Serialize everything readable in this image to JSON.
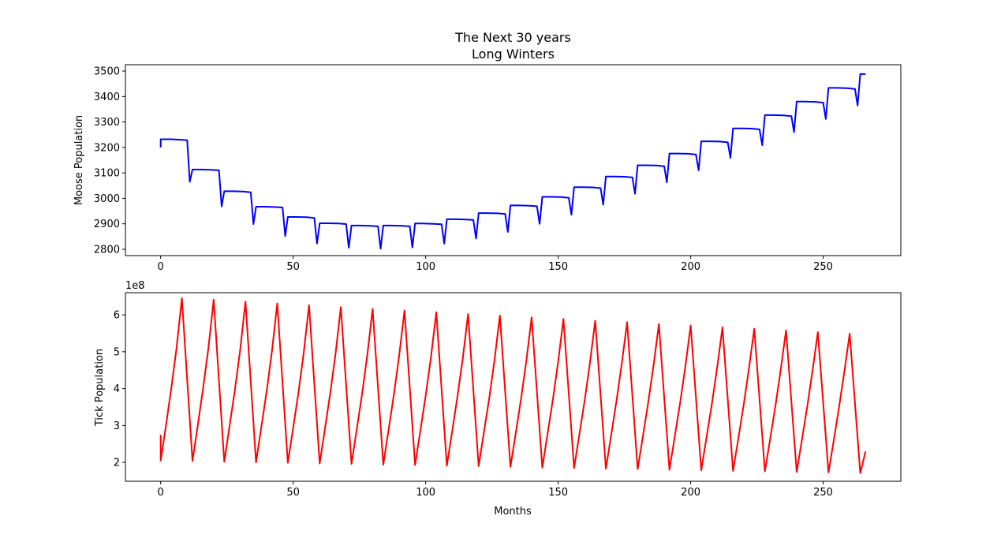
{
  "figure": {
    "title_line1": "The Next 30 years",
    "title_line2": "Long Winters"
  },
  "chart_data": [
    {
      "type": "line",
      "title": "The Next 30 years\nLong Winters",
      "xlabel": "",
      "ylabel": "Moose Population",
      "xlim": [
        -13.3,
        279.3
      ],
      "ylim": [
        2775,
        3525
      ],
      "xticks": [
        0,
        50,
        100,
        150,
        200,
        250
      ],
      "yticks": [
        2800,
        2900,
        3000,
        3100,
        3200,
        3300,
        3400,
        3500
      ],
      "color": "#0000ff",
      "x": [
        0,
        0,
        1,
        4,
        8,
        10,
        11,
        12,
        15,
        19,
        22,
        23,
        24,
        27,
        31,
        34,
        35,
        36,
        39,
        43,
        46,
        47,
        48,
        51,
        55,
        58,
        59,
        60,
        63,
        67,
        70,
        71,
        72,
        75,
        79,
        82,
        83,
        84,
        87,
        91,
        94,
        95,
        96,
        99,
        103,
        106,
        107,
        108,
        111,
        115,
        118,
        119,
        120,
        123,
        127,
        130,
        131,
        132,
        135,
        139,
        142,
        143,
        144,
        147,
        151,
        154,
        155,
        156,
        159,
        163,
        166,
        167,
        168,
        171,
        175,
        178,
        179,
        180,
        183,
        187,
        190,
        191,
        192,
        195,
        199,
        202,
        203,
        204,
        207,
        211,
        214,
        215,
        216,
        219,
        223,
        226,
        227,
        228,
        231,
        235,
        238,
        239,
        240,
        243,
        247,
        250,
        251,
        252,
        255,
        259,
        262,
        263,
        264,
        266
      ],
      "y": [
        3200,
        3232,
        3232,
        3232,
        3230,
        3228,
        3065,
        3113,
        3113,
        3112,
        3110,
        2968,
        3028,
        3028,
        3027,
        3024,
        2899,
        2967,
        2967,
        2966,
        2964,
        2852,
        2927,
        2927,
        2926,
        2923,
        2822,
        2902,
        2902,
        2901,
        2899,
        2806,
        2893,
        2893,
        2892,
        2890,
        2802,
        2893,
        2893,
        2892,
        2890,
        2807,
        2901,
        2901,
        2900,
        2898,
        2822,
        2918,
        2918,
        2917,
        2915,
        2842,
        2942,
        2942,
        2941,
        2939,
        2868,
        2972,
        2972,
        2971,
        2969,
        2900,
        3006,
        3006,
        3005,
        3002,
        2936,
        3044,
        3044,
        3043,
        3040,
        2975,
        3086,
        3086,
        3085,
        3082,
        3018,
        3130,
        3130,
        3129,
        3126,
        3063,
        3176,
        3176,
        3175,
        3172,
        3110,
        3224,
        3224,
        3223,
        3220,
        3159,
        3275,
        3275,
        3274,
        3271,
        3209,
        3327,
        3327,
        3326,
        3323,
        3260,
        3380,
        3380,
        3379,
        3376,
        3312,
        3434,
        3434,
        3433,
        3430,
        3365,
        3488,
        3488
      ]
    },
    {
      "type": "line",
      "title": "",
      "xlabel": "Months",
      "ylabel": "Tick Population",
      "offset_label": "1e8",
      "xlim": [
        -13.3,
        279.3
      ],
      "ylim": [
        1.49,
        6.6
      ],
      "xticks": [
        0,
        50,
        100,
        150,
        200,
        250
      ],
      "yticks": [
        2,
        3,
        4,
        5,
        6
      ],
      "color": "#ff0000",
      "x": [
        0,
        0,
        2,
        4,
        6,
        8,
        12,
        14,
        16,
        18,
        20,
        24,
        26,
        28,
        30,
        32,
        36,
        38,
        40,
        42,
        44,
        48,
        50,
        52,
        54,
        56,
        60,
        62,
        64,
        66,
        68,
        72,
        74,
        76,
        78,
        80,
        84,
        86,
        88,
        90,
        92,
        96,
        98,
        100,
        102,
        104,
        108,
        110,
        112,
        114,
        116,
        120,
        122,
        124,
        126,
        128,
        132,
        134,
        136,
        138,
        140,
        144,
        146,
        148,
        150,
        152,
        156,
        158,
        160,
        162,
        164,
        168,
        170,
        172,
        174,
        176,
        180,
        182,
        184,
        186,
        188,
        192,
        194,
        196,
        198,
        200,
        204,
        206,
        208,
        210,
        212,
        216,
        218,
        220,
        222,
        224,
        228,
        230,
        232,
        234,
        236,
        240,
        242,
        244,
        246,
        248,
        252,
        254,
        256,
        258,
        260,
        264,
        266
      ],
      "y": [
        2.75,
        2.05,
        3.0,
        4.0,
        5.1,
        6.45,
        2.04,
        3.0,
        4.0,
        5.1,
        6.41,
        2.02,
        2.98,
        3.95,
        5.05,
        6.36,
        2.0,
        2.96,
        3.93,
        5.02,
        6.31,
        1.99,
        2.94,
        3.9,
        4.98,
        6.26,
        1.97,
        2.92,
        3.88,
        4.95,
        6.21,
        1.96,
        2.9,
        3.85,
        4.92,
        6.16,
        1.94,
        2.88,
        3.83,
        4.89,
        6.12,
        1.93,
        2.86,
        3.8,
        4.86,
        6.07,
        1.91,
        2.84,
        3.78,
        4.82,
        6.02,
        1.9,
        2.82,
        3.75,
        4.79,
        5.98,
        1.88,
        2.8,
        3.73,
        4.76,
        5.93,
        1.86,
        2.78,
        3.7,
        4.73,
        5.89,
        1.85,
        2.76,
        3.68,
        4.7,
        5.84,
        1.83,
        2.74,
        3.66,
        4.67,
        5.8,
        1.82,
        2.72,
        3.63,
        4.64,
        5.75,
        1.8,
        2.7,
        3.61,
        4.61,
        5.71,
        1.79,
        2.68,
        3.59,
        4.58,
        5.66,
        1.77,
        2.66,
        3.56,
        4.55,
        5.62,
        1.76,
        2.64,
        3.54,
        4.52,
        5.58,
        1.74,
        2.62,
        3.52,
        4.49,
        5.53,
        1.73,
        2.6,
        3.5,
        4.46,
        5.49,
        1.71,
        2.3
      ]
    }
  ]
}
